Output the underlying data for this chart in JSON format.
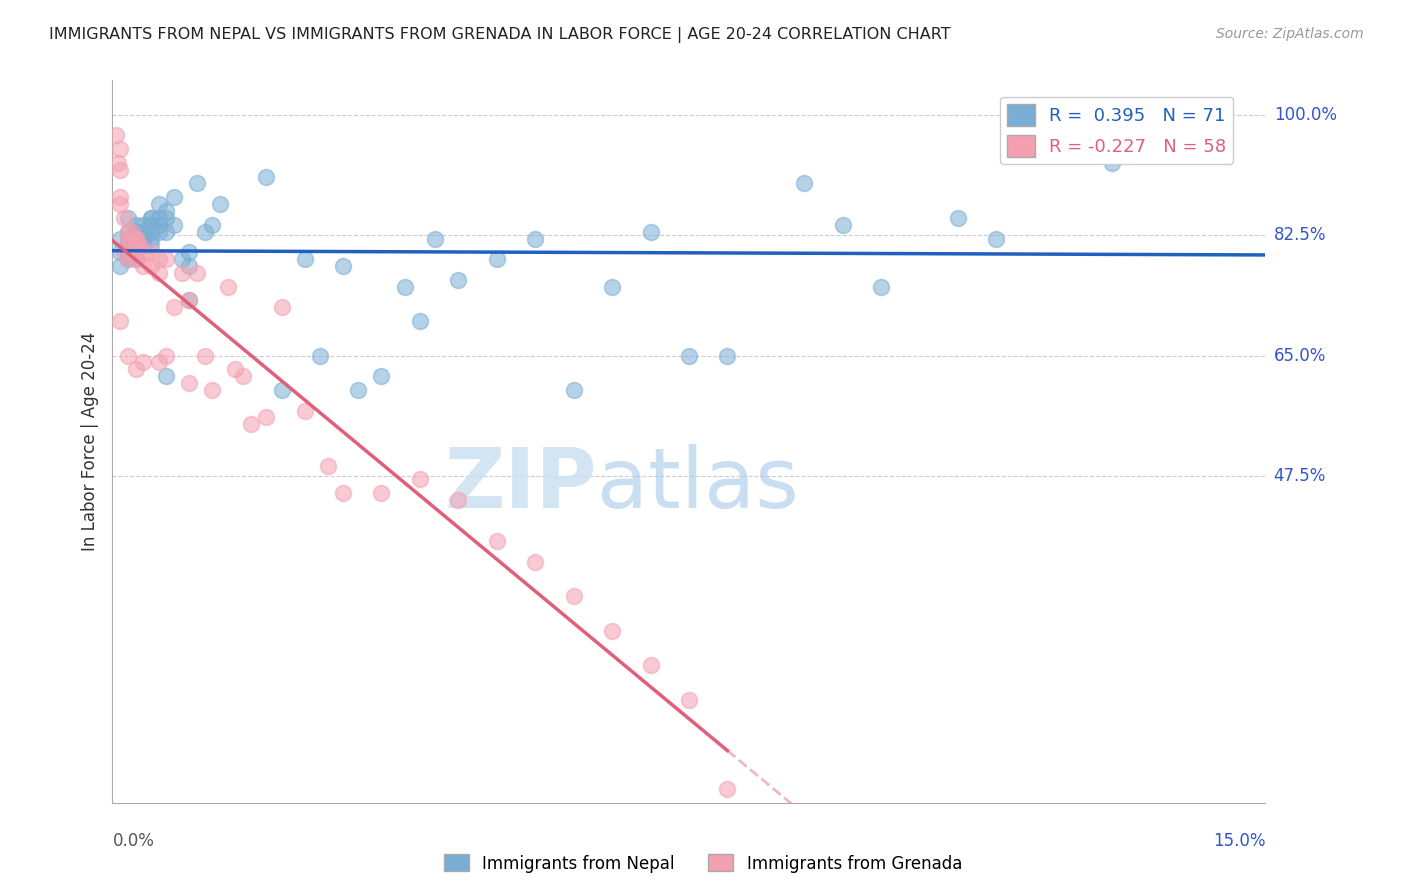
{
  "title": "IMMIGRANTS FROM NEPAL VS IMMIGRANTS FROM GRENADA IN LABOR FORCE | AGE 20-24 CORRELATION CHART",
  "source": "Source: ZipAtlas.com",
  "xlabel_bottom_left": "0.0%",
  "xlabel_bottom_right": "15.0%",
  "ylabel": "In Labor Force | Age 20-24",
  "yaxis_labels": [
    "100.0%",
    "82.5%",
    "65.0%",
    "47.5%"
  ],
  "yaxis_values": [
    1.0,
    0.825,
    0.65,
    0.475
  ],
  "xmin": 0.0,
  "xmax": 0.15,
  "ymin": 0.0,
  "ymax": 1.05,
  "legend_nepal_r": "R =  0.395",
  "legend_nepal_n": "N = 71",
  "legend_grenada_r": "R = -0.227",
  "legend_grenada_n": "N = 58",
  "nepal_color": "#7aadd4",
  "grenada_color": "#f4a0b0",
  "nepal_trend_color": "#2060c0",
  "grenada_trend_color": "#e0607a",
  "watermark_zip": "ZIP",
  "watermark_atlas": "atlas",
  "nepal_points_x": [
    0.001,
    0.001,
    0.001,
    0.002,
    0.002,
    0.002,
    0.002,
    0.002,
    0.002,
    0.003,
    0.003,
    0.003,
    0.003,
    0.003,
    0.003,
    0.003,
    0.003,
    0.004,
    0.004,
    0.004,
    0.004,
    0.004,
    0.005,
    0.005,
    0.005,
    0.005,
    0.005,
    0.005,
    0.006,
    0.006,
    0.006,
    0.006,
    0.007,
    0.007,
    0.007,
    0.007,
    0.008,
    0.008,
    0.009,
    0.01,
    0.01,
    0.01,
    0.011,
    0.012,
    0.013,
    0.014,
    0.02,
    0.022,
    0.025,
    0.027,
    0.03,
    0.032,
    0.035,
    0.038,
    0.04,
    0.042,
    0.045,
    0.05,
    0.055,
    0.06,
    0.065,
    0.07,
    0.075,
    0.08,
    0.09,
    0.095,
    0.1,
    0.11,
    0.115,
    0.13,
    0.135
  ],
  "nepal_points_y": [
    0.82,
    0.8,
    0.78,
    0.85,
    0.83,
    0.82,
    0.81,
    0.8,
    0.79,
    0.84,
    0.83,
    0.83,
    0.82,
    0.81,
    0.81,
    0.8,
    0.79,
    0.84,
    0.83,
    0.82,
    0.82,
    0.81,
    0.85,
    0.85,
    0.84,
    0.83,
    0.82,
    0.81,
    0.87,
    0.85,
    0.84,
    0.83,
    0.86,
    0.85,
    0.83,
    0.62,
    0.88,
    0.84,
    0.79,
    0.8,
    0.78,
    0.73,
    0.9,
    0.83,
    0.84,
    0.87,
    0.91,
    0.6,
    0.79,
    0.65,
    0.78,
    0.6,
    0.62,
    0.75,
    0.7,
    0.82,
    0.76,
    0.79,
    0.82,
    0.6,
    0.75,
    0.83,
    0.65,
    0.65,
    0.9,
    0.84,
    0.75,
    0.85,
    0.82,
    0.93,
    0.97
  ],
  "grenada_points_x": [
    0.0005,
    0.0007,
    0.001,
    0.001,
    0.001,
    0.001,
    0.001,
    0.0015,
    0.0015,
    0.002,
    0.002,
    0.002,
    0.002,
    0.002,
    0.0025,
    0.003,
    0.003,
    0.003,
    0.003,
    0.003,
    0.003,
    0.0035,
    0.004,
    0.004,
    0.004,
    0.005,
    0.005,
    0.006,
    0.006,
    0.006,
    0.007,
    0.007,
    0.008,
    0.009,
    0.01,
    0.01,
    0.011,
    0.012,
    0.013,
    0.015,
    0.016,
    0.017,
    0.018,
    0.02,
    0.022,
    0.025,
    0.028,
    0.03,
    0.035,
    0.04,
    0.045,
    0.05,
    0.055,
    0.06,
    0.065,
    0.07,
    0.075,
    0.08
  ],
  "grenada_points_y": [
    0.97,
    0.93,
    0.95,
    0.92,
    0.88,
    0.87,
    0.7,
    0.85,
    0.8,
    0.83,
    0.82,
    0.81,
    0.79,
    0.65,
    0.83,
    0.82,
    0.82,
    0.81,
    0.8,
    0.79,
    0.63,
    0.81,
    0.8,
    0.78,
    0.64,
    0.8,
    0.78,
    0.79,
    0.77,
    0.64,
    0.79,
    0.65,
    0.72,
    0.77,
    0.73,
    0.61,
    0.77,
    0.65,
    0.6,
    0.75,
    0.63,
    0.62,
    0.55,
    0.56,
    0.72,
    0.57,
    0.49,
    0.45,
    0.45,
    0.47,
    0.44,
    0.38,
    0.35,
    0.3,
    0.25,
    0.2,
    0.15,
    0.02
  ]
}
